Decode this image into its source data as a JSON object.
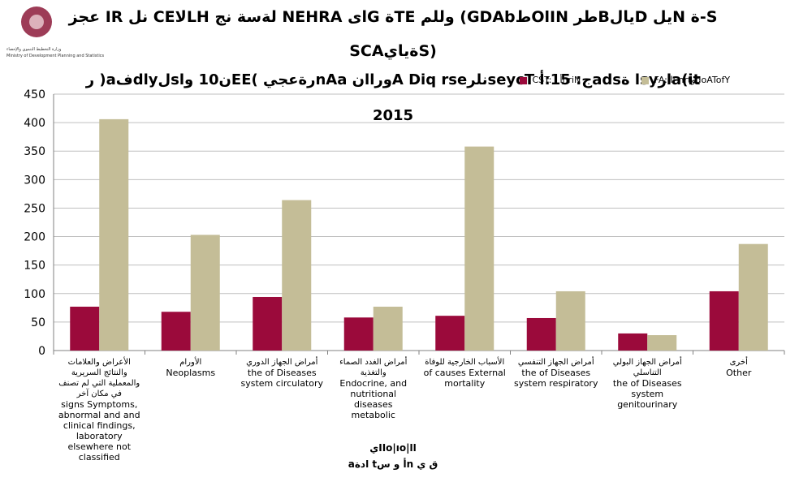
{
  "header": {
    "logo_text_ar": "وزارة التخطيط التنموي والإحصاء",
    "logo_text_en": "Ministry of Development Planning and Statistics"
  },
  "chart_data": {
    "type": "bar",
    "title_lines": [
      "عجز IR نل CEلاLH لةسة نج NEHRA اىG ةTE وللم (GDAbطOlIN طرBيالD يلN ة-S",
      "SCAةيايS)",
      "ر )aفdاyلsن10 واEE( رةعجيnAa نlوراA Diq rseنلرseycT ج: 15:أadsا ةsyرla(it"
    ],
    "year": "2015",
    "xlabel_lines": [
      "يIIo|ıo|اا",
      "aادة tأ و سn ق ي"
    ],
    "legend": [
      {
        "label": "CST: أ اnriN",
        "color": "#9b0a3b"
      },
      {
        "label": "FA: ؛ا nrtوdoATofY",
        "color": "#c4bd97"
      }
    ],
    "ylim": [
      0,
      450
    ],
    "y_ticks": [
      "0",
      "50",
      "100",
      "150",
      "200",
      "250",
      "300",
      "350",
      "400",
      "450"
    ],
    "categories": [
      {
        "ar": "الأعراض والعلامات والنتائج السريرية والمعملية التي لم تصنف في مكان آخر",
        "en": "signs Symptoms, abnormal and and clinical findings, laboratory elsewhere not classified"
      },
      {
        "ar": "الأورام",
        "en": "Neoplasms"
      },
      {
        "ar": "أمراض الجهاز الدوري",
        "en": "the of Diseases system circulatory"
      },
      {
        "ar": "أمراض الغدد الصماء والتغذية",
        "en": "Endocrine, and nutritional diseases metabolic"
      },
      {
        "ar": "الأسباب الخارجية للوفاة",
        "en": "of causes External mortality"
      },
      {
        "ar": "أمراض الجهاز التنفسي",
        "en": "the of Diseases system respiratory"
      },
      {
        "ar": "أمراض الجهاز البولي التناسلي",
        "en": "the of Diseases system genitourinary"
      },
      {
        "ar": "أخرى",
        "en": "Other"
      }
    ],
    "series": [
      {
        "values": [
          77,
          68,
          94,
          58,
          61,
          57,
          30,
          104
        ]
      },
      {
        "values": [
          406,
          203,
          264,
          77,
          358,
          104,
          27,
          187
        ]
      }
    ]
  }
}
